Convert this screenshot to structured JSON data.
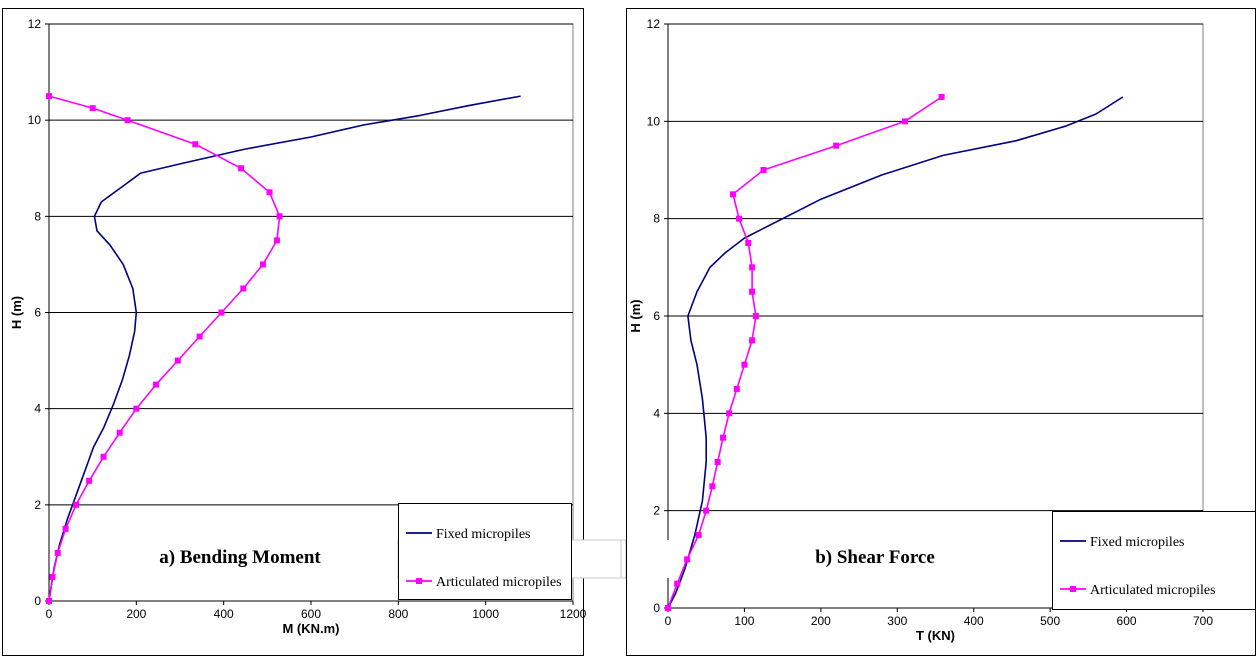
{
  "chart_data": [
    {
      "type": "line",
      "panel_label": "a) Bending Moment",
      "xlabel": "M (KN.m)",
      "ylabel": "H  (m)",
      "xlim": [
        0,
        1200
      ],
      "ylim": [
        0,
        12
      ],
      "x_ticks": [
        0,
        200,
        400,
        600,
        800,
        1000,
        1200
      ],
      "y_ticks": [
        0,
        2,
        4,
        6,
        8,
        10,
        12
      ],
      "grid": "horizontal",
      "legend_position": "bottom-right",
      "series": [
        {
          "name": "Fixed micropiles",
          "color": "#000080",
          "marker": "none",
          "points": [
            [
              0,
              0
            ],
            [
              5,
              0.3
            ],
            [
              12,
              0.7
            ],
            [
              25,
              1.2
            ],
            [
              42,
              1.7
            ],
            [
              62,
              2.2
            ],
            [
              82,
              2.7
            ],
            [
              102,
              3.2
            ],
            [
              125,
              3.6
            ],
            [
              148,
              4.1
            ],
            [
              168,
              4.6
            ],
            [
              184,
              5.1
            ],
            [
              196,
              5.6
            ],
            [
              200,
              6.0
            ],
            [
              192,
              6.5
            ],
            [
              170,
              7.0
            ],
            [
              140,
              7.4
            ],
            [
              110,
              7.7
            ],
            [
              104,
              8.0
            ],
            [
              120,
              8.3
            ],
            [
              165,
              8.6
            ],
            [
              210,
              8.9
            ],
            [
              305,
              9.1
            ],
            [
              450,
              9.4
            ],
            [
              600,
              9.65
            ],
            [
              720,
              9.9
            ],
            [
              850,
              10.1
            ],
            [
              960,
              10.3
            ],
            [
              1080,
              10.5
            ]
          ]
        },
        {
          "name": "Articulated micropiles",
          "color": "#FF00FF",
          "marker": "square",
          "points": [
            [
              0,
              10.5
            ],
            [
              100,
              10.25
            ],
            [
              180,
              10.0
            ],
            [
              335,
              9.5
            ],
            [
              440,
              9.0
            ],
            [
              505,
              8.5
            ],
            [
              528,
              8.0
            ],
            [
              522,
              7.5
            ],
            [
              490,
              7.0
            ],
            [
              445,
              6.5
            ],
            [
              395,
              6.0
            ],
            [
              345,
              5.5
            ],
            [
              295,
              5.0
            ],
            [
              245,
              4.5
            ],
            [
              200,
              4.0
            ],
            [
              162,
              3.5
            ],
            [
              125,
              3.0
            ],
            [
              92,
              2.5
            ],
            [
              62,
              2.0
            ],
            [
              38,
              1.5
            ],
            [
              20,
              1.0
            ],
            [
              8,
              0.5
            ],
            [
              0,
              0
            ]
          ]
        }
      ]
    },
    {
      "type": "line",
      "panel_label": "b) Shear Force",
      "xlabel": "T (KN)",
      "ylabel": "H  (m)",
      "xlim": [
        0,
        700
      ],
      "ylim": [
        0,
        12
      ],
      "x_ticks": [
        0,
        100,
        200,
        300,
        400,
        500,
        600,
        700
      ],
      "y_ticks": [
        0,
        2,
        4,
        6,
        8,
        10,
        12
      ],
      "grid": "horizontal",
      "legend_position": "bottom-right",
      "series": [
        {
          "name": "Fixed micropiles",
          "color": "#000080",
          "marker": "none",
          "points": [
            [
              0,
              0
            ],
            [
              10,
              0.3
            ],
            [
              22,
              0.8
            ],
            [
              35,
              1.5
            ],
            [
              45,
              2.2
            ],
            [
              50,
              3.0
            ],
            [
              50,
              3.5
            ],
            [
              45,
              4.3
            ],
            [
              38,
              5.0
            ],
            [
              30,
              5.5
            ],
            [
              26,
              6.0
            ],
            [
              38,
              6.5
            ],
            [
              55,
              7.0
            ],
            [
              75,
              7.3
            ],
            [
              100,
              7.6
            ],
            [
              150,
              8.0
            ],
            [
              200,
              8.4
            ],
            [
              280,
              8.9
            ],
            [
              360,
              9.3
            ],
            [
              455,
              9.6
            ],
            [
              520,
              9.9
            ],
            [
              560,
              10.15
            ],
            [
              595,
              10.5
            ]
          ]
        },
        {
          "name": "Articulated micropiles",
          "color": "#FF00FF",
          "marker": "square",
          "points": [
            [
              0,
              0
            ],
            [
              12,
              0.5
            ],
            [
              25,
              1.0
            ],
            [
              40,
              1.5
            ],
            [
              50,
              2.0
            ],
            [
              58,
              2.5
            ],
            [
              65,
              3.0
            ],
            [
              72,
              3.5
            ],
            [
              80,
              4.0
            ],
            [
              90,
              4.5
            ],
            [
              100,
              5.0
            ],
            [
              110,
              5.5
            ],
            [
              115,
              6.0
            ],
            [
              110,
              6.5
            ],
            [
              110,
              7.0
            ],
            [
              105,
              7.5
            ],
            [
              93,
              8.0
            ],
            [
              85,
              8.5
            ],
            [
              125,
              9.0
            ],
            [
              220,
              9.5
            ],
            [
              310,
              10.0
            ],
            [
              358,
              10.5
            ]
          ]
        }
      ]
    }
  ]
}
